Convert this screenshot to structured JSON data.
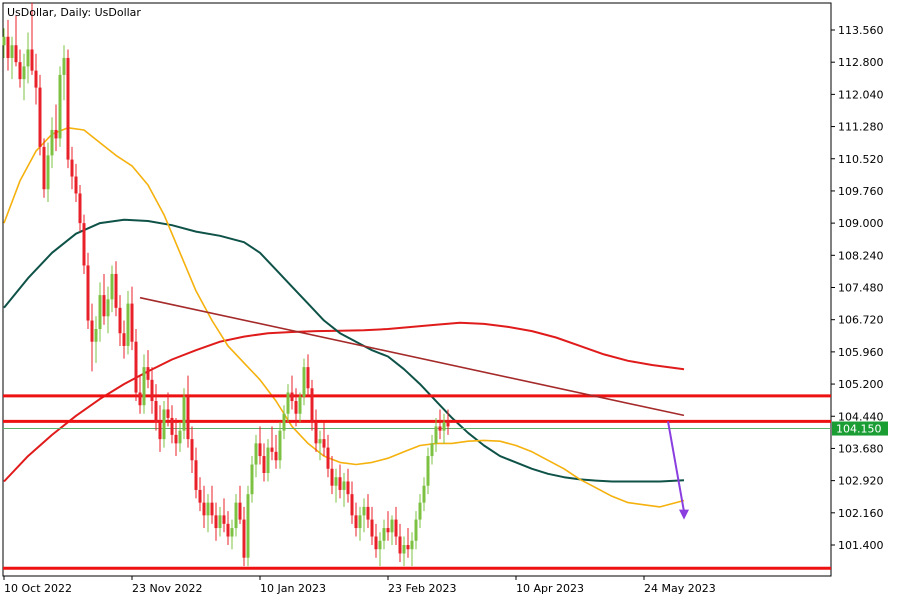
{
  "header": {
    "title": "UsDollar, Daily:  UsDollar"
  },
  "chart_data": {
    "type": "candlestick",
    "symbol": "UsDollar",
    "timeframe": "Daily",
    "y_ticks": [
      113.56,
      112.8,
      112.04,
      111.28,
      110.52,
      109.76,
      109.0,
      108.24,
      107.48,
      106.72,
      105.96,
      105.2,
      104.44,
      103.68,
      102.92,
      102.16,
      101.4
    ],
    "x_ticks": [
      "10 Oct 2022",
      "23 Nov 2022",
      "10 Jan 2023",
      "23 Feb 2023",
      "10 Apr 2023",
      "24 May 2023"
    ],
    "ylim": [
      100.75,
      114.25
    ],
    "current_price": {
      "value": "104.150",
      "y": 104.15
    },
    "colors": {
      "bull": "#7cc142",
      "bear": "#e8202a",
      "ma_fast": "#f5b10d",
      "ma_mid": "#0e5248",
      "ma_slow": "#e01b1b",
      "trendline": "#a52a2a",
      "levels": "#ee1111",
      "price_line": "#5fb06a",
      "price_tag": "#1a9e34",
      "arrow": "#8a3ee0"
    },
    "horizontal_levels": [
      104.92,
      104.32,
      100.85
    ],
    "trendline": {
      "from": [
        34,
        107.24
      ],
      "to": [
        170,
        104.46
      ]
    },
    "arrow": {
      "from": [
        166,
        104.32
      ],
      "to": [
        170,
        102.0
      ]
    },
    "ma_fast": [
      [
        0,
        109.0
      ],
      [
        4,
        110.0
      ],
      [
        8,
        110.7
      ],
      [
        12,
        111.1
      ],
      [
        16,
        111.25
      ],
      [
        20,
        111.2
      ],
      [
        24,
        110.9
      ],
      [
        28,
        110.6
      ],
      [
        32,
        110.35
      ],
      [
        36,
        109.9
      ],
      [
        40,
        109.2
      ],
      [
        44,
        108.3
      ],
      [
        48,
        107.4
      ],
      [
        52,
        106.7
      ],
      [
        56,
        106.1
      ],
      [
        60,
        105.7
      ],
      [
        64,
        105.3
      ],
      [
        68,
        104.8
      ],
      [
        72,
        104.2
      ],
      [
        76,
        103.8
      ],
      [
        80,
        103.5
      ],
      [
        84,
        103.35
      ],
      [
        88,
        103.3
      ],
      [
        92,
        103.35
      ],
      [
        96,
        103.45
      ],
      [
        100,
        103.6
      ],
      [
        104,
        103.75
      ],
      [
        108,
        103.8
      ],
      [
        112,
        103.8
      ],
      [
        116,
        103.85
      ],
      [
        120,
        103.87
      ],
      [
        124,
        103.85
      ],
      [
        128,
        103.75
      ],
      [
        132,
        103.6
      ],
      [
        136,
        103.4
      ],
      [
        140,
        103.2
      ],
      [
        144,
        102.95
      ],
      [
        148,
        102.75
      ],
      [
        152,
        102.55
      ],
      [
        156,
        102.4
      ],
      [
        160,
        102.35
      ],
      [
        164,
        102.3
      ],
      [
        170,
        102.45
      ]
    ],
    "ma_mid": [
      [
        0,
        107.0
      ],
      [
        6,
        107.7
      ],
      [
        12,
        108.3
      ],
      [
        18,
        108.75
      ],
      [
        24,
        109.0
      ],
      [
        30,
        109.08
      ],
      [
        36,
        109.05
      ],
      [
        42,
        108.95
      ],
      [
        48,
        108.8
      ],
      [
        54,
        108.7
      ],
      [
        60,
        108.55
      ],
      [
        64,
        108.3
      ],
      [
        68,
        107.9
      ],
      [
        72,
        107.5
      ],
      [
        76,
        107.1
      ],
      [
        80,
        106.7
      ],
      [
        84,
        106.4
      ],
      [
        88,
        106.2
      ],
      [
        92,
        106.0
      ],
      [
        96,
        105.85
      ],
      [
        100,
        105.55
      ],
      [
        104,
        105.2
      ],
      [
        108,
        104.8
      ],
      [
        112,
        104.4
      ],
      [
        116,
        104.05
      ],
      [
        120,
        103.75
      ],
      [
        124,
        103.5
      ],
      [
        128,
        103.35
      ],
      [
        132,
        103.2
      ],
      [
        136,
        103.08
      ],
      [
        140,
        103.0
      ],
      [
        144,
        102.95
      ],
      [
        148,
        102.92
      ],
      [
        152,
        102.9
      ],
      [
        158,
        102.9
      ],
      [
        164,
        102.9
      ],
      [
        170,
        102.93
      ]
    ],
    "ma_slow": [
      [
        0,
        102.9
      ],
      [
        6,
        103.5
      ],
      [
        12,
        104.0
      ],
      [
        18,
        104.45
      ],
      [
        24,
        104.85
      ],
      [
        30,
        105.2
      ],
      [
        36,
        105.5
      ],
      [
        42,
        105.78
      ],
      [
        48,
        106.0
      ],
      [
        54,
        106.2
      ],
      [
        60,
        106.32
      ],
      [
        66,
        106.4
      ],
      [
        72,
        106.43
      ],
      [
        78,
        106.45
      ],
      [
        84,
        106.46
      ],
      [
        90,
        106.47
      ],
      [
        96,
        106.5
      ],
      [
        102,
        106.55
      ],
      [
        108,
        106.6
      ],
      [
        114,
        106.65
      ],
      [
        120,
        106.62
      ],
      [
        126,
        106.55
      ],
      [
        132,
        106.45
      ],
      [
        138,
        106.3
      ],
      [
        144,
        106.1
      ],
      [
        150,
        105.9
      ],
      [
        156,
        105.75
      ],
      [
        162,
        105.65
      ],
      [
        170,
        105.55
      ]
    ],
    "candles": [
      [
        113.2,
        113.6,
        112.9,
        113.4
      ],
      [
        113.4,
        113.8,
        112.6,
        112.9
      ],
      [
        112.9,
        113.4,
        112.4,
        113.2
      ],
      [
        113.2,
        113.9,
        112.7,
        112.8
      ],
      [
        112.8,
        113.1,
        112.2,
        112.4
      ],
      [
        112.4,
        113.0,
        111.9,
        112.7
      ],
      [
        112.7,
        113.5,
        112.3,
        113.1
      ],
      [
        113.1,
        114.2,
        112.5,
        112.6
      ],
      [
        112.6,
        113.0,
        111.8,
        112.2
      ],
      [
        112.2,
        112.5,
        110.6,
        110.8
      ],
      [
        110.8,
        111.0,
        109.6,
        109.8
      ],
      [
        109.8,
        110.9,
        109.5,
        110.6
      ],
      [
        110.6,
        111.5,
        110.3,
        111.2
      ],
      [
        111.2,
        111.8,
        110.7,
        111.0
      ],
      [
        111.0,
        112.7,
        110.8,
        112.5
      ],
      [
        112.5,
        113.2,
        111.9,
        112.9
      ],
      [
        112.9,
        113.1,
        110.3,
        110.5
      ],
      [
        110.5,
        110.8,
        109.8,
        110.1
      ],
      [
        110.1,
        110.4,
        109.5,
        109.7
      ],
      [
        109.7,
        109.9,
        108.8,
        109.0
      ],
      [
        109.0,
        109.2,
        107.8,
        108.0
      ],
      [
        108.0,
        108.3,
        106.5,
        106.7
      ],
      [
        106.7,
        107.1,
        105.5,
        106.2
      ],
      [
        106.2,
        106.8,
        105.7,
        106.5
      ],
      [
        106.5,
        107.6,
        106.2,
        107.3
      ],
      [
        107.3,
        107.8,
        106.6,
        106.8
      ],
      [
        106.8,
        107.5,
        106.4,
        107.2
      ],
      [
        107.2,
        108.0,
        106.9,
        107.8
      ],
      [
        107.8,
        108.1,
        106.8,
        107.0
      ],
      [
        107.0,
        107.3,
        106.1,
        106.4
      ],
      [
        106.4,
        106.7,
        105.8,
        106.1
      ],
      [
        106.1,
        107.4,
        105.9,
        107.1
      ],
      [
        107.1,
        107.5,
        106.0,
        106.2
      ],
      [
        106.2,
        106.5,
        104.8,
        105.0
      ],
      [
        105.0,
        105.4,
        104.5,
        104.7
      ],
      [
        104.7,
        105.9,
        104.5,
        105.6
      ],
      [
        105.6,
        106.0,
        105.1,
        105.3
      ],
      [
        105.3,
        105.6,
        104.5,
        104.8
      ],
      [
        104.8,
        105.2,
        104.1,
        104.3
      ],
      [
        104.3,
        104.7,
        103.6,
        103.9
      ],
      [
        103.9,
        104.8,
        103.7,
        104.6
      ],
      [
        104.6,
        105.0,
        104.2,
        104.4
      ],
      [
        104.4,
        104.7,
        103.8,
        104.0
      ],
      [
        104.0,
        104.4,
        103.5,
        103.8
      ],
      [
        103.8,
        104.3,
        103.6,
        104.1
      ],
      [
        104.1,
        105.1,
        103.9,
        104.9
      ],
      [
        104.9,
        105.4,
        103.7,
        103.9
      ],
      [
        103.9,
        104.2,
        103.1,
        103.4
      ],
      [
        103.4,
        103.7,
        102.5,
        102.7
      ],
      [
        102.7,
        103.0,
        102.2,
        102.4
      ],
      [
        102.4,
        102.8,
        101.8,
        102.1
      ],
      [
        102.1,
        102.6,
        101.7,
        102.4
      ],
      [
        102.4,
        102.8,
        101.9,
        102.1
      ],
      [
        102.1,
        102.4,
        101.5,
        101.8
      ],
      [
        101.8,
        102.3,
        101.6,
        102.1
      ],
      [
        102.1,
        102.5,
        101.7,
        101.9
      ],
      [
        101.9,
        102.2,
        101.4,
        101.6
      ],
      [
        101.6,
        102.0,
        101.3,
        101.8
      ],
      [
        101.8,
        102.6,
        101.6,
        102.4
      ],
      [
        102.4,
        102.8,
        101.9,
        102.0
      ],
      [
        102.0,
        102.3,
        100.9,
        101.1
      ],
      [
        101.1,
        102.8,
        100.9,
        102.6
      ],
      [
        102.6,
        103.5,
        102.4,
        103.3
      ],
      [
        103.3,
        104.0,
        103.0,
        103.8
      ],
      [
        103.8,
        104.2,
        103.3,
        103.5
      ],
      [
        103.5,
        103.8,
        102.9,
        103.1
      ],
      [
        103.1,
        103.9,
        102.9,
        103.7
      ],
      [
        103.7,
        104.2,
        103.4,
        103.6
      ],
      [
        103.6,
        104.0,
        103.2,
        103.4
      ],
      [
        103.4,
        104.3,
        103.2,
        104.1
      ],
      [
        104.1,
        104.7,
        103.9,
        104.5
      ],
      [
        104.5,
        105.2,
        104.3,
        105.0
      ],
      [
        105.0,
        105.4,
        104.6,
        104.8
      ],
      [
        104.8,
        105.1,
        104.2,
        104.5
      ],
      [
        104.5,
        105.0,
        104.3,
        104.9
      ],
      [
        104.9,
        105.8,
        104.7,
        105.6
      ],
      [
        105.6,
        105.9,
        104.9,
        105.1
      ],
      [
        105.1,
        105.3,
        104.1,
        104.3
      ],
      [
        104.3,
        104.6,
        103.6,
        103.8
      ],
      [
        103.8,
        104.1,
        103.4,
        103.9
      ],
      [
        103.9,
        104.3,
        103.5,
        103.7
      ],
      [
        103.7,
        104.0,
        103.0,
        103.2
      ],
      [
        103.2,
        103.5,
        102.6,
        102.8
      ],
      [
        102.8,
        103.2,
        102.4,
        103.0
      ],
      [
        103.0,
        103.3,
        102.5,
        102.7
      ],
      [
        102.7,
        103.1,
        102.3,
        102.9
      ],
      [
        102.9,
        103.2,
        102.4,
        102.6
      ],
      [
        102.6,
        102.9,
        101.9,
        102.1
      ],
      [
        102.1,
        102.4,
        101.6,
        101.8
      ],
      [
        101.8,
        102.3,
        101.5,
        102.1
      ],
      [
        102.1,
        102.5,
        101.7,
        102.3
      ],
      [
        102.3,
        102.6,
        101.8,
        102.0
      ],
      [
        102.0,
        102.3,
        101.4,
        101.6
      ],
      [
        101.6,
        101.9,
        101.1,
        101.3
      ],
      [
        101.3,
        101.7,
        100.9,
        101.5
      ],
      [
        101.5,
        102.0,
        101.3,
        101.8
      ],
      [
        101.8,
        102.2,
        101.5,
        101.7
      ],
      [
        101.7,
        102.1,
        101.4,
        102.0
      ],
      [
        102.0,
        102.3,
        101.4,
        101.6
      ],
      [
        101.6,
        101.9,
        101.0,
        101.2
      ],
      [
        101.2,
        101.6,
        100.9,
        101.4
      ],
      [
        101.4,
        101.8,
        101.1,
        101.3
      ],
      [
        101.3,
        101.7,
        100.9,
        101.5
      ],
      [
        101.5,
        102.2,
        101.3,
        102.0
      ],
      [
        102.0,
        102.6,
        101.8,
        102.4
      ],
      [
        102.4,
        103.0,
        102.2,
        102.8
      ],
      [
        102.8,
        103.7,
        102.6,
        103.5
      ],
      [
        103.5,
        104.0,
        103.3,
        103.8
      ],
      [
        103.8,
        104.4,
        103.6,
        104.2
      ],
      [
        104.2,
        104.6,
        103.9,
        104.1
      ],
      [
        104.1,
        104.5,
        103.8,
        104.3
      ],
      [
        104.3,
        104.6,
        104.0,
        104.2
      ]
    ]
  }
}
